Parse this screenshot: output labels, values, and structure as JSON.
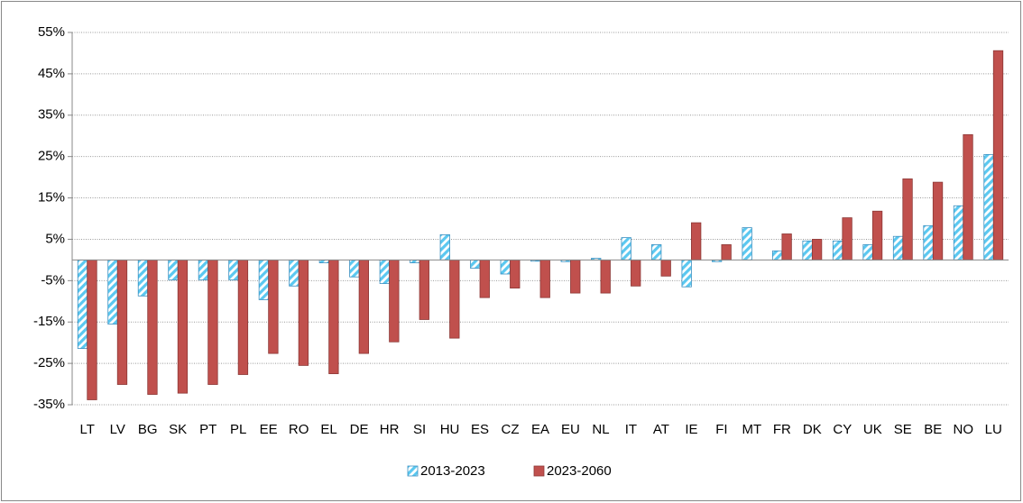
{
  "chart_data": {
    "type": "bar",
    "categories": [
      "LT",
      "LV",
      "BG",
      "SK",
      "PT",
      "PL",
      "EE",
      "RO",
      "EL",
      "DE",
      "HR",
      "SI",
      "HU",
      "ES",
      "CZ",
      "EA",
      "EU",
      "NL",
      "IT",
      "AT",
      "IE",
      "FI",
      "MT",
      "FR",
      "DK",
      "CY",
      "UK",
      "SE",
      "BE",
      "NO",
      "LU"
    ],
    "series": [
      {
        "name": "2013-2023",
        "color": "#5bc8f0",
        "values": [
          -21.4,
          -15.5,
          -8.7,
          -4.8,
          -4.8,
          -4.8,
          -9.6,
          -6.3,
          -0.7,
          -4.1,
          -5.7,
          -0.7,
          6.1,
          -2,
          -3.4,
          -0.3,
          -0.4,
          0.4,
          5.4,
          3.7,
          -6.5,
          -0.4,
          7.8,
          2.2,
          4.6,
          4.6,
          3.7,
          5.7,
          8.3,
          13.1,
          25.5
        ]
      },
      {
        "name": "2023-2060",
        "color": "#c0504d",
        "values": [
          -33.8,
          -30.1,
          -32.5,
          -32.2,
          -30.1,
          -27.7,
          -22.6,
          -25.5,
          -27.5,
          -22.6,
          -19.8,
          -14.4,
          -18.9,
          -9.1,
          -6.8,
          -9.1,
          -8.0,
          -8.0,
          -6.3,
          -3.9,
          9.0,
          3.7,
          0,
          6.3,
          5.0,
          10.2,
          11.8,
          19.6,
          18.8,
          30.3,
          50.6
        ]
      }
    ],
    "ylim": [
      -35,
      55
    ],
    "yticks": [
      {
        "value": -35,
        "label": "-35%"
      },
      {
        "value": -25,
        "label": "-25%"
      },
      {
        "value": -15,
        "label": "-15%"
      },
      {
        "value": -5,
        "label": "-5%"
      },
      {
        "value": 5,
        "label": "5%"
      },
      {
        "value": 15,
        "label": "15%"
      },
      {
        "value": 25,
        "label": "25%"
      },
      {
        "value": 35,
        "label": "35%"
      },
      {
        "value": 45,
        "label": "45%"
      },
      {
        "value": 55,
        "label": "55%"
      }
    ],
    "grid": true,
    "legend": "bottom"
  }
}
